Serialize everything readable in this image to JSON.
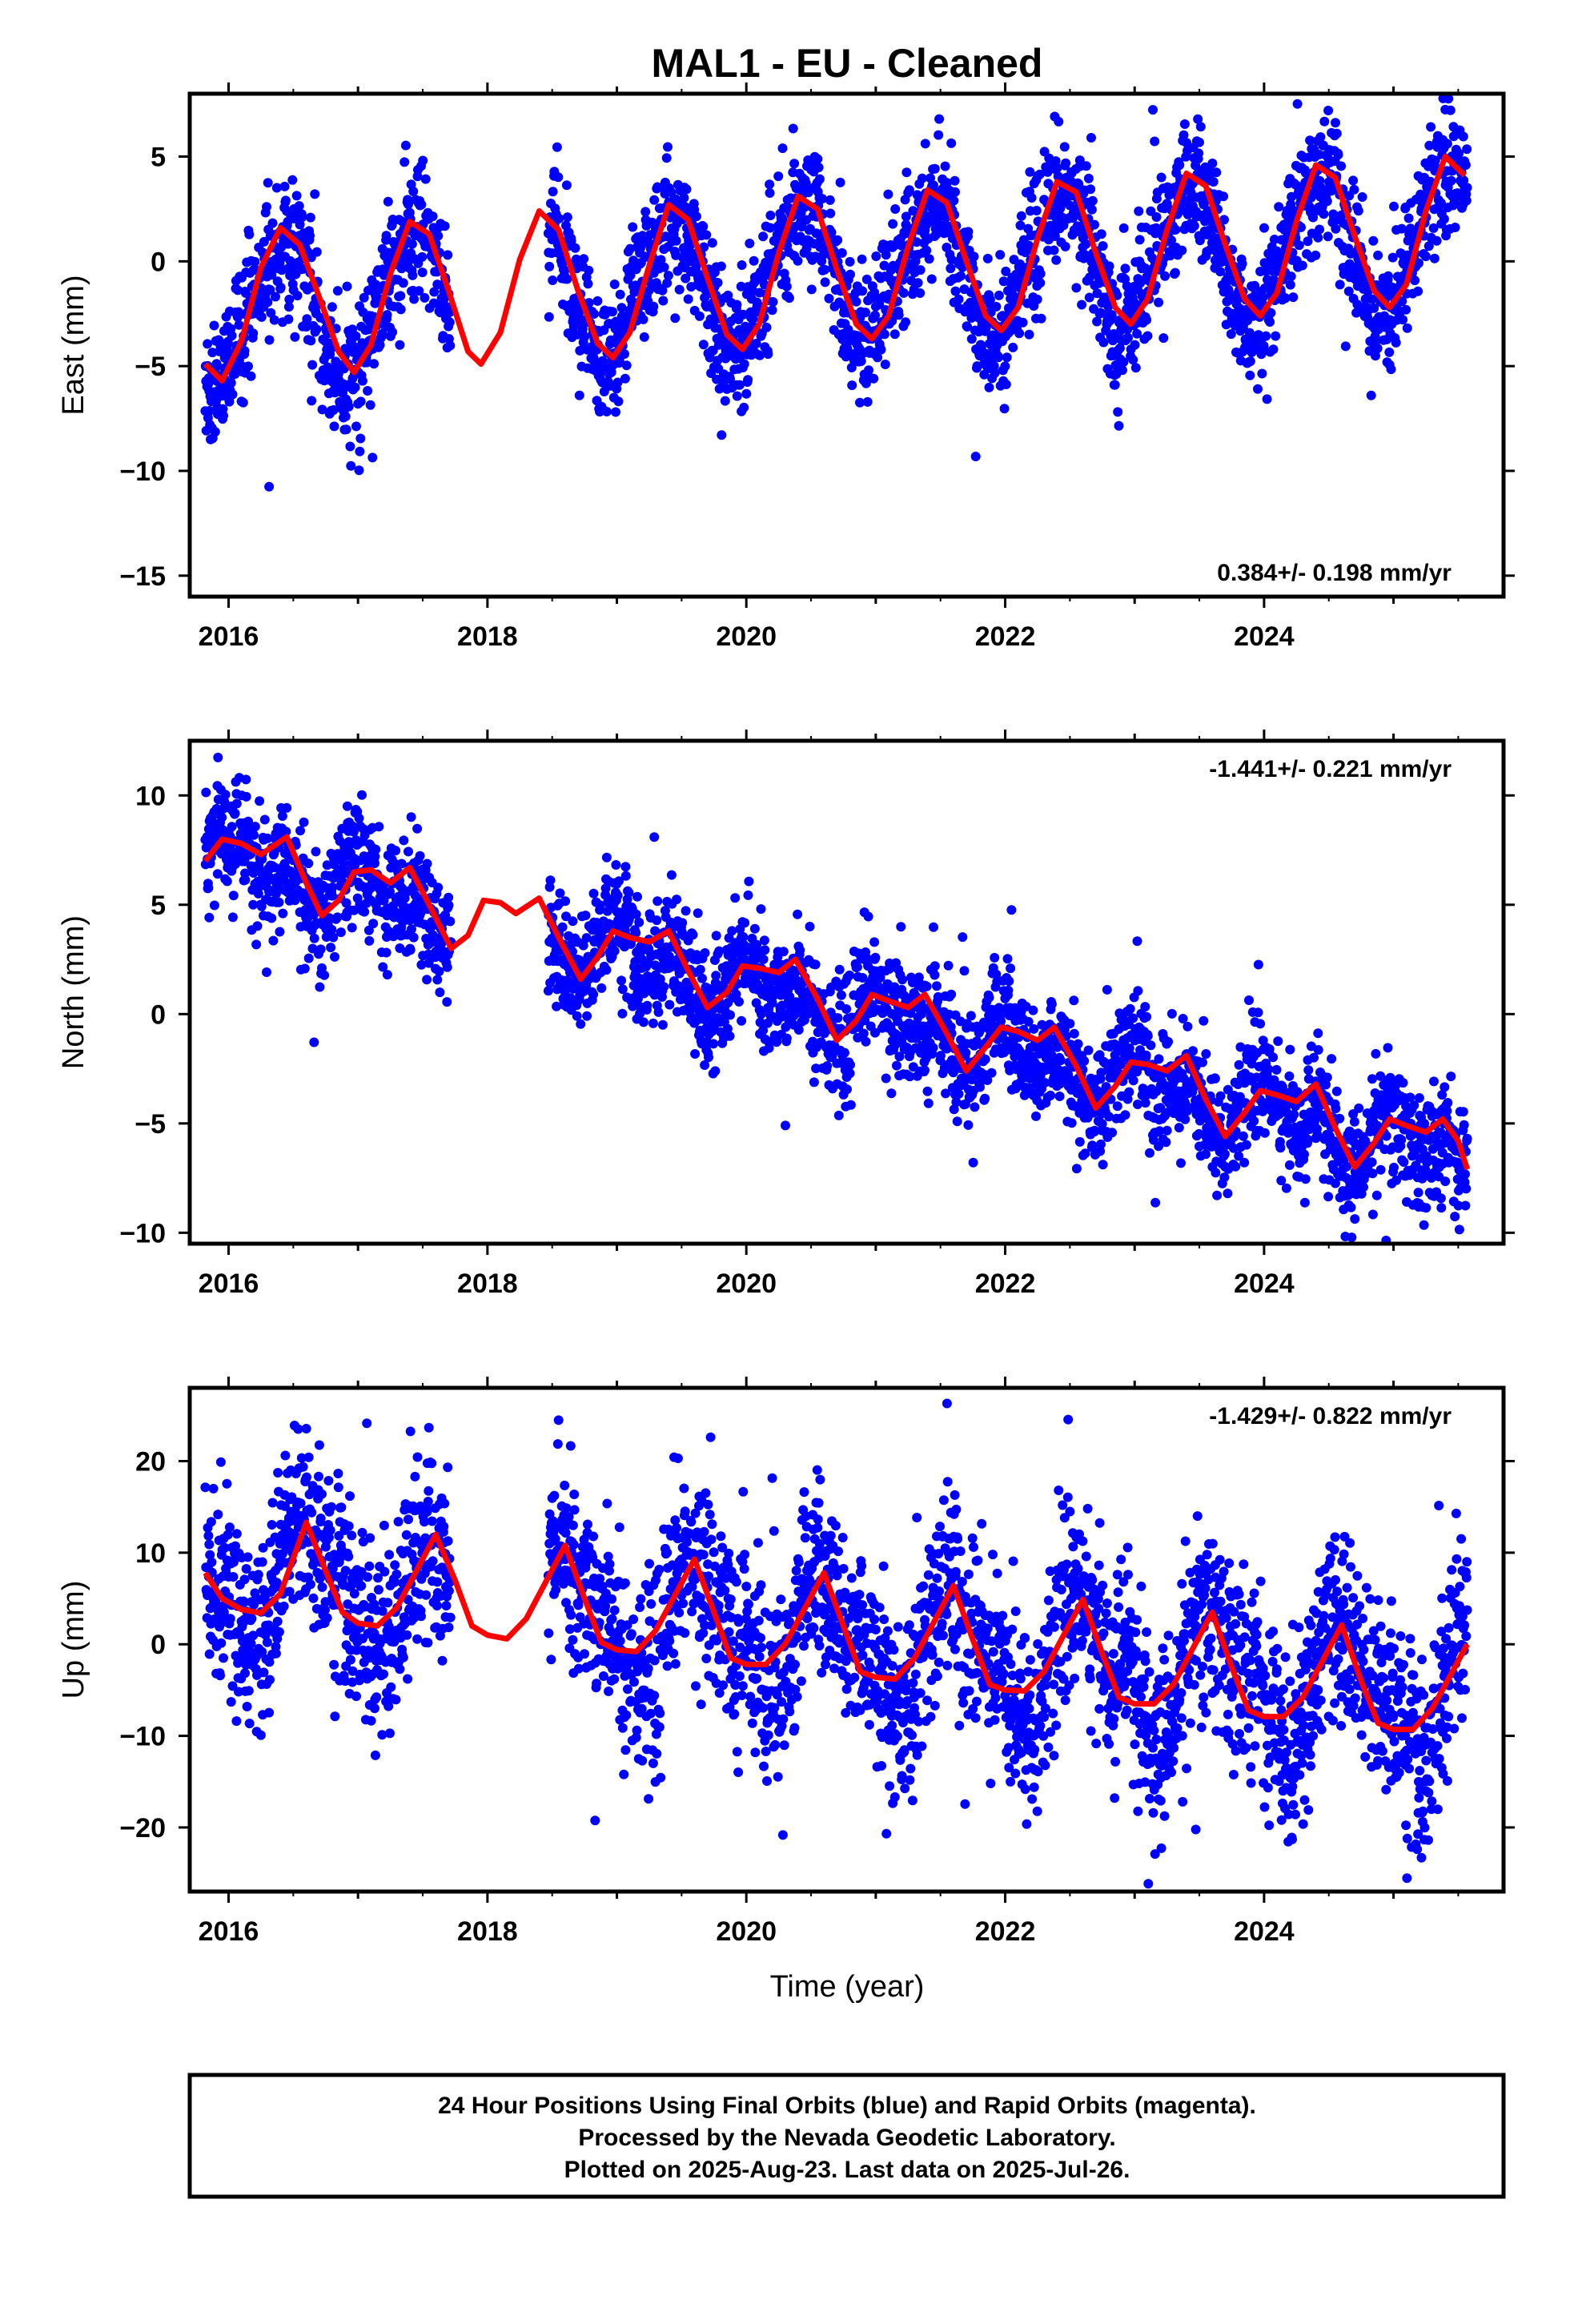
{
  "title": "MAL1  - EU - Cleaned",
  "xlabel": "Time (year)",
  "footer": [
    "24 Hour Positions Using Final Orbits (blue) and Rapid Orbits (magenta).",
    "Processed by the Nevada Geodetic Laboratory.",
    "Plotted on 2025-Aug-23. Last data on 2025-Jul-26."
  ],
  "colors": {
    "data": "#0000ff",
    "model": "#ff0000",
    "frame": "#000000"
  },
  "chart_data": [
    {
      "type": "scatter",
      "component": "east",
      "ylabel": "East (mm)",
      "rate_text": "0.384+/- 0.198 mm/yr",
      "rate_position": "bottom-right",
      "xlim": [
        2015.7,
        2025.85
      ],
      "ylim": [
        -16,
        8
      ],
      "xticks": [
        2016,
        2018,
        2020,
        2022,
        2024
      ],
      "yticks": [
        -15,
        -10,
        -5,
        0,
        5
      ],
      "data_gap": [
        2017.72,
        2018.47
      ],
      "series": [
        {
          "name": "Final Orbits",
          "style": "points"
        },
        {
          "name": "Model",
          "style": "line"
        }
      ],
      "model": {
        "t0": 2020.5,
        "offset": -0.7,
        "rate": 0.384,
        "annual": 3.3,
        "annual_peak": 0.42,
        "semiannual": 0.45,
        "semi_peak": 0.1,
        "noise": 1.5
      },
      "model_line": [
        [
          2015.82,
          -4.9
        ],
        [
          2015.95,
          -5.7
        ],
        [
          2016.1,
          -3.8
        ],
        [
          2016.25,
          -0.3
        ],
        [
          2016.4,
          1.6
        ],
        [
          2016.55,
          0.8
        ],
        [
          2016.7,
          -1.7
        ],
        [
          2016.85,
          -4.3
        ],
        [
          2016.97,
          -5.3
        ],
        [
          2017.1,
          -4.0
        ],
        [
          2017.25,
          -0.6
        ],
        [
          2017.4,
          1.9
        ],
        [
          2017.55,
          1.3
        ],
        [
          2017.7,
          -1.4
        ],
        [
          2017.85,
          -4.3
        ],
        [
          2017.95,
          -4.9
        ],
        [
          2018.1,
          -3.4
        ],
        [
          2018.25,
          0.1
        ],
        [
          2018.4,
          2.4
        ],
        [
          2018.55,
          1.5
        ],
        [
          2018.7,
          -1.4
        ],
        [
          2018.85,
          -3.9
        ],
        [
          2018.97,
          -4.6
        ],
        [
          2019.1,
          -3.4
        ],
        [
          2019.25,
          -0.2
        ],
        [
          2019.4,
          2.7
        ],
        [
          2019.55,
          2.0
        ],
        [
          2019.7,
          -0.8
        ],
        [
          2019.85,
          -3.5
        ],
        [
          2019.97,
          -4.2
        ],
        [
          2020.1,
          -3.0
        ],
        [
          2020.25,
          0.4
        ],
        [
          2020.4,
          3.1
        ],
        [
          2020.55,
          2.5
        ],
        [
          2020.7,
          -0.4
        ],
        [
          2020.85,
          -3.0
        ],
        [
          2020.97,
          -3.7
        ],
        [
          2021.1,
          -2.6
        ],
        [
          2021.25,
          0.7
        ],
        [
          2021.4,
          3.4
        ],
        [
          2021.55,
          2.8
        ],
        [
          2021.7,
          0.0
        ],
        [
          2021.85,
          -2.6
        ],
        [
          2021.97,
          -3.3
        ],
        [
          2022.1,
          -2.2
        ],
        [
          2022.25,
          1.1
        ],
        [
          2022.4,
          3.8
        ],
        [
          2022.55,
          3.3
        ],
        [
          2022.7,
          0.4
        ],
        [
          2022.85,
          -2.2
        ],
        [
          2022.97,
          -3.0
        ],
        [
          2023.1,
          -1.8
        ],
        [
          2023.25,
          1.5
        ],
        [
          2023.4,
          4.2
        ],
        [
          2023.55,
          3.6
        ],
        [
          2023.7,
          0.8
        ],
        [
          2023.85,
          -1.8
        ],
        [
          2023.97,
          -2.6
        ],
        [
          2024.1,
          -1.5
        ],
        [
          2024.25,
          1.9
        ],
        [
          2024.4,
          4.6
        ],
        [
          2024.55,
          4.0
        ],
        [
          2024.7,
          1.2
        ],
        [
          2024.85,
          -1.4
        ],
        [
          2024.97,
          -2.2
        ],
        [
          2025.1,
          -1.1
        ],
        [
          2025.25,
          2.4
        ],
        [
          2025.4,
          5.0
        ],
        [
          2025.55,
          4.1
        ]
      ]
    },
    {
      "type": "scatter",
      "component": "north",
      "ylabel": "North (mm)",
      "rate_text": "-1.441+/- 0.221 mm/yr",
      "rate_position": "top-right",
      "xlim": [
        2015.7,
        2025.85
      ],
      "ylim": [
        -10.5,
        12.5
      ],
      "xticks": [
        2016,
        2018,
        2020,
        2022,
        2024
      ],
      "yticks": [
        -10,
        -5,
        0,
        5,
        10
      ],
      "data_gap": [
        2017.72,
        2018.47
      ],
      "series": [
        {
          "name": "Final Orbits",
          "style": "points"
        },
        {
          "name": "Model",
          "style": "line"
        }
      ],
      "model": {
        "t0": 2020.5,
        "offset": 0.6,
        "rate": -1.441,
        "annual": 0.8,
        "annual_peak": 0.1,
        "semiannual": 0.9,
        "semi_peak": 0.95,
        "noise": 1.3
      },
      "model_line": [
        [
          2015.82,
          7.0
        ],
        [
          2015.95,
          8.0
        ],
        [
          2016.1,
          7.8
        ],
        [
          2016.25,
          7.3
        ],
        [
          2016.45,
          8.1
        ],
        [
          2016.6,
          6.0
        ],
        [
          2016.72,
          4.5
        ],
        [
          2016.85,
          5.2
        ],
        [
          2016.97,
          6.5
        ],
        [
          2017.1,
          6.6
        ],
        [
          2017.25,
          6.0
        ],
        [
          2017.4,
          6.7
        ],
        [
          2017.55,
          5.0
        ],
        [
          2017.72,
          3.0
        ],
        [
          2017.85,
          3.6
        ],
        [
          2017.97,
          5.2
        ],
        [
          2018.1,
          5.1
        ],
        [
          2018.22,
          4.6
        ],
        [
          2018.4,
          5.3
        ],
        [
          2018.55,
          3.5
        ],
        [
          2018.72,
          1.6
        ],
        [
          2018.85,
          2.6
        ],
        [
          2018.97,
          3.8
        ],
        [
          2019.1,
          3.5
        ],
        [
          2019.25,
          3.3
        ],
        [
          2019.4,
          3.8
        ],
        [
          2019.55,
          2.0
        ],
        [
          2019.7,
          0.3
        ],
        [
          2019.85,
          1.0
        ],
        [
          2019.97,
          2.2
        ],
        [
          2020.1,
          2.1
        ],
        [
          2020.25,
          1.9
        ],
        [
          2020.38,
          2.5
        ],
        [
          2020.55,
          0.7
        ],
        [
          2020.7,
          -1.2
        ],
        [
          2020.85,
          -0.3
        ],
        [
          2020.97,
          0.9
        ],
        [
          2021.1,
          0.6
        ],
        [
          2021.25,
          0.3
        ],
        [
          2021.38,
          0.9
        ],
        [
          2021.55,
          -0.9
        ],
        [
          2021.7,
          -2.6
        ],
        [
          2021.85,
          -1.5
        ],
        [
          2021.97,
          -0.6
        ],
        [
          2022.1,
          -0.8
        ],
        [
          2022.25,
          -1.2
        ],
        [
          2022.38,
          -0.6
        ],
        [
          2022.55,
          -2.4
        ],
        [
          2022.7,
          -4.3
        ],
        [
          2022.85,
          -3.3
        ],
        [
          2022.97,
          -2.2
        ],
        [
          2023.1,
          -2.3
        ],
        [
          2023.25,
          -2.6
        ],
        [
          2023.4,
          -1.9
        ],
        [
          2023.55,
          -3.9
        ],
        [
          2023.7,
          -5.6
        ],
        [
          2023.85,
          -4.5
        ],
        [
          2023.97,
          -3.5
        ],
        [
          2024.1,
          -3.7
        ],
        [
          2024.25,
          -4.0
        ],
        [
          2024.4,
          -3.2
        ],
        [
          2024.55,
          -5.2
        ],
        [
          2024.7,
          -7.0
        ],
        [
          2024.85,
          -5.9
        ],
        [
          2024.97,
          -4.8
        ],
        [
          2025.1,
          -5.1
        ],
        [
          2025.25,
          -5.4
        ],
        [
          2025.38,
          -4.8
        ],
        [
          2025.5,
          -5.8
        ],
        [
          2025.57,
          -7.1
        ]
      ]
    },
    {
      "type": "scatter",
      "component": "up",
      "ylabel": "Up (mm)",
      "rate_text": "-1.429+/- 0.822 mm/yr",
      "rate_position": "top-right",
      "xlim": [
        2015.7,
        2025.85
      ],
      "ylim": [
        -27,
        28
      ],
      "xticks": [
        2016,
        2018,
        2020,
        2022,
        2024
      ],
      "yticks": [
        -20,
        -10,
        0,
        10,
        20
      ],
      "data_gap": [
        2017.72,
        2018.47
      ],
      "series": [
        {
          "name": "Final Orbits",
          "style": "points"
        },
        {
          "name": "Model",
          "style": "line"
        }
      ],
      "model": {
        "t0": 2020.5,
        "offset": 1.0,
        "rate": -1.429,
        "annual": 6.0,
        "annual_peak": 0.62,
        "semiannual": 2.2,
        "semi_peak": 0.5,
        "noise": 5.0
      },
      "model_line": [
        [
          2015.82,
          7.8
        ],
        [
          2015.95,
          5.0
        ],
        [
          2016.1,
          3.8
        ],
        [
          2016.25,
          3.4
        ],
        [
          2016.4,
          5.5
        ],
        [
          2016.6,
          13.3
        ],
        [
          2016.75,
          8.0
        ],
        [
          2016.88,
          3.5
        ],
        [
          2017.0,
          2.3
        ],
        [
          2017.15,
          2.0
        ],
        [
          2017.3,
          4.0
        ],
        [
          2017.6,
          12.0
        ],
        [
          2017.75,
          7.0
        ],
        [
          2017.88,
          2.0
        ],
        [
          2018.0,
          1.0
        ],
        [
          2018.15,
          0.6
        ],
        [
          2018.3,
          2.8
        ],
        [
          2018.6,
          10.8
        ],
        [
          2018.75,
          5.0
        ],
        [
          2018.88,
          0.2
        ],
        [
          2019.0,
          -0.6
        ],
        [
          2019.15,
          -0.8
        ],
        [
          2019.3,
          1.5
        ],
        [
          2019.6,
          9.3
        ],
        [
          2019.75,
          3.5
        ],
        [
          2019.88,
          -1.5
        ],
        [
          2020.0,
          -2.2
        ],
        [
          2020.15,
          -2.2
        ],
        [
          2020.3,
          0.0
        ],
        [
          2020.6,
          7.8
        ],
        [
          2020.75,
          2.0
        ],
        [
          2020.88,
          -3.0
        ],
        [
          2021.0,
          -3.6
        ],
        [
          2021.15,
          -3.8
        ],
        [
          2021.3,
          -1.5
        ],
        [
          2021.6,
          6.4
        ],
        [
          2021.75,
          0.5
        ],
        [
          2021.88,
          -4.4
        ],
        [
          2022.0,
          -5.0
        ],
        [
          2022.15,
          -5.1
        ],
        [
          2022.3,
          -3.0
        ],
        [
          2022.6,
          4.9
        ],
        [
          2022.75,
          -1.0
        ],
        [
          2022.88,
          -5.8
        ],
        [
          2023.0,
          -6.5
        ],
        [
          2023.15,
          -6.5
        ],
        [
          2023.3,
          -4.4
        ],
        [
          2023.6,
          3.5
        ],
        [
          2023.75,
          -2.5
        ],
        [
          2023.88,
          -7.2
        ],
        [
          2024.0,
          -7.9
        ],
        [
          2024.15,
          -7.9
        ],
        [
          2024.3,
          -5.8
        ],
        [
          2024.6,
          2.1
        ],
        [
          2024.75,
          -4.0
        ],
        [
          2024.88,
          -8.6
        ],
        [
          2025.0,
          -9.3
        ],
        [
          2025.15,
          -9.3
        ],
        [
          2025.3,
          -7.0
        ],
        [
          2025.57,
          0.0
        ]
      ]
    }
  ]
}
